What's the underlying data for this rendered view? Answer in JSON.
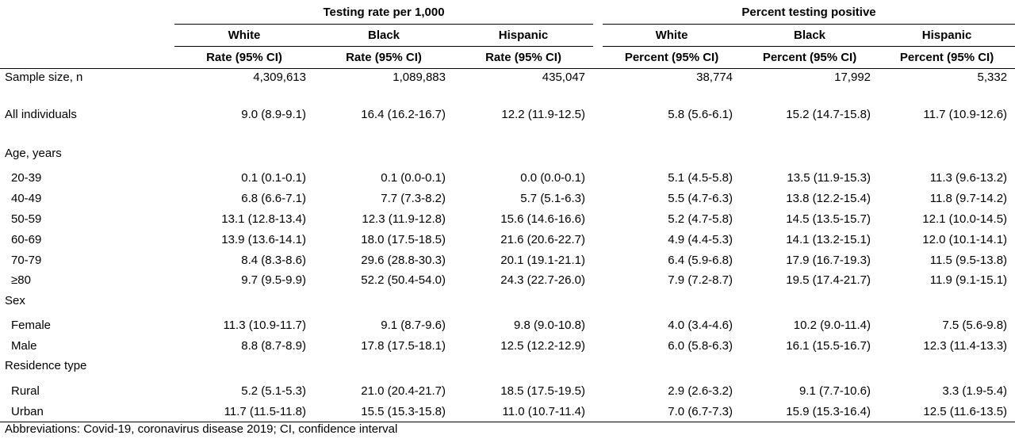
{
  "header": {
    "group1": "Testing rate per 1,000",
    "group2": "Percent testing positive",
    "races": [
      "White",
      "Black",
      "Hispanic",
      "White",
      "Black",
      "Hispanic"
    ],
    "metrics": [
      "Rate (95% CI)",
      "Rate (95% CI)",
      "Rate (95% CI)",
      "Percent (95% CI)",
      "Percent (95% CI)",
      "Percent (95% CI)"
    ]
  },
  "rows": {
    "sample": {
      "label": "Sample size, n",
      "values": [
        "4,309,613",
        "1,089,883",
        "435,047",
        "38,774",
        "17,992",
        "5,332"
      ]
    },
    "all": {
      "label": "All individuals",
      "values": [
        "9.0 (8.9-9.1)",
        "16.4 (16.2-16.7)",
        "12.2 (11.9-12.5)",
        "5.8 (5.6-6.1)",
        "15.2 (14.7-15.8)",
        "11.7 (10.9-12.6)"
      ]
    },
    "age_header": "Age, years",
    "age": [
      {
        "label": "20-39",
        "values": [
          "0.1 (0.1-0.1)",
          "0.1 (0.0-0.1)",
          "0.0 (0.0-0.1)",
          "5.1 (4.5-5.8)",
          "13.5 (11.9-15.3)",
          "11.3 (9.6-13.2)"
        ]
      },
      {
        "label": "40-49",
        "values": [
          "6.8 (6.6-7.1)",
          "7.7 (7.3-8.2)",
          "5.7 (5.1-6.3)",
          "5.5 (4.7-6.3)",
          "13.8 (12.2-15.4)",
          "11.8 (9.7-14.2)"
        ]
      },
      {
        "label": "50-59",
        "values": [
          "13.1 (12.8-13.4)",
          "12.3 (11.9-12.8)",
          "15.6 (14.6-16.6)",
          "5.2 (4.7-5.8)",
          "14.5 (13.5-15.7)",
          "12.1 (10.0-14.5)"
        ]
      },
      {
        "label": "60-69",
        "values": [
          "13.9 (13.6-14.1)",
          "18.0 (17.5-18.5)",
          "21.6 (20.6-22.7)",
          "4.9 (4.4-5.3)",
          "14.1 (13.2-15.1)",
          "12.0 (10.1-14.1)"
        ]
      },
      {
        "label": "70-79",
        "values": [
          "8.4 (8.3-8.6)",
          "29.6 (28.8-30.3)",
          "20.1 (19.1-21.1)",
          "6.4 (5.9-6.8)",
          "17.9 (16.7-19.3)",
          "11.5 (9.5-13.8)"
        ]
      },
      {
        "label": "≥80",
        "values": [
          "9.7 (9.5-9.9)",
          "52.2 (50.4-54.0)",
          "24.3 (22.7-26.0)",
          "7.9 (7.2-8.7)",
          "19.5 (17.4-21.7)",
          "11.9 (9.1-15.1)"
        ]
      }
    ],
    "sex_header": "Sex",
    "sex": [
      {
        "label": "Female",
        "values": [
          "11.3 (10.9-11.7)",
          "9.1 (8.7-9.6)",
          "9.8 (9.0-10.8)",
          "4.0 (3.4-4.6)",
          "10.2 (9.0-11.4)",
          "7.5 (5.6-9.8)"
        ]
      },
      {
        "label": "Male",
        "values": [
          "8.8 (8.7-8.9)",
          "17.8 (17.5-18.1)",
          "12.5 (12.2-12.9)",
          "6.0 (5.8-6.3)",
          "16.1 (15.5-16.7)",
          "12.3 (11.4-13.3)"
        ]
      }
    ],
    "res_header": "Residence type",
    "res": [
      {
        "label": "Rural",
        "values": [
          "5.2 (5.1-5.3)",
          "21.0 (20.4-21.7)",
          "18.5 (17.5-19.5)",
          "2.9 (2.6-3.2)",
          "9.1 (7.7-10.6)",
          "3.3 (1.9-5.4)"
        ]
      },
      {
        "label": "Urban",
        "values": [
          "11.7 (11.5-11.8)",
          "15.5 (15.3-15.8)",
          "11.0 (10.7-11.4)",
          "7.0 (6.7-7.3)",
          "15.9 (15.3-16.4)",
          "12.5 (11.6-13.5)"
        ]
      }
    ]
  },
  "footnote": "Abbreviations: Covid-19, coronavirus disease 2019; CI, confidence interval"
}
